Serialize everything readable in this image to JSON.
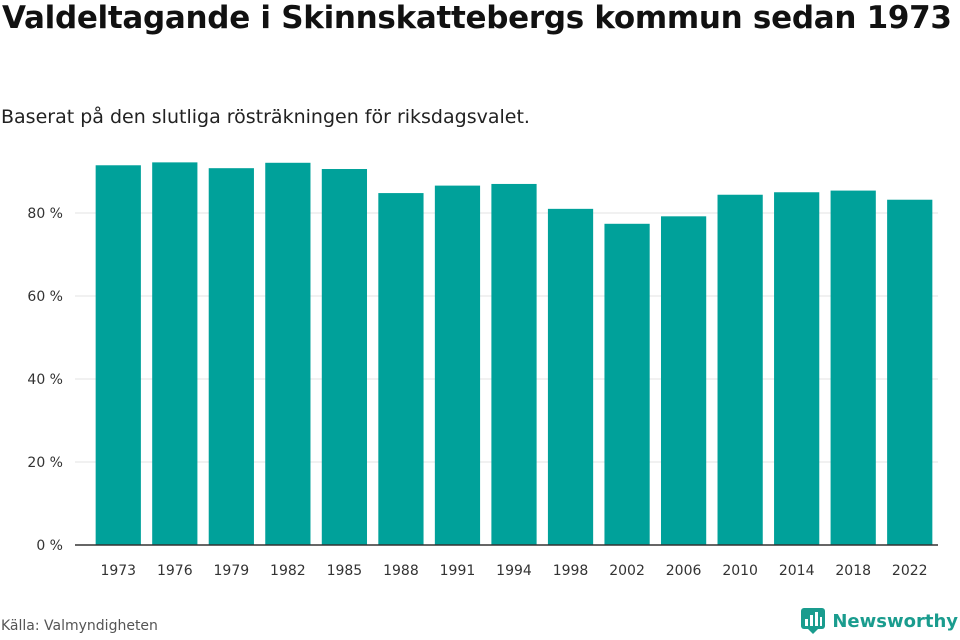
{
  "title": "Valdeltagande i Skinnskattebergs kommun sedan 1973",
  "subtitle": "Baserat på den slutliga rösträkningen för riksdagsvalet.",
  "source": "Källa: Valmyndigheten",
  "brand": "Newsworthy",
  "colors": {
    "bar": "#00a19a",
    "grid": "#e3e3e3",
    "axis": "#333333",
    "brand": "#1a9c8e"
  },
  "chart_data": {
    "type": "bar",
    "categories": [
      "1973",
      "1976",
      "1979",
      "1982",
      "1985",
      "1988",
      "1991",
      "1994",
      "1998",
      "2002",
      "2006",
      "2010",
      "2014",
      "2018",
      "2022"
    ],
    "values": [
      91.5,
      92.2,
      90.8,
      92.1,
      90.6,
      84.8,
      86.6,
      87.0,
      81.0,
      77.4,
      79.2,
      84.4,
      85.0,
      85.4,
      83.2
    ],
    "ylim": [
      0,
      100
    ],
    "yticks": [
      0,
      20,
      40,
      60,
      80
    ],
    "ytick_labels": [
      "0 %",
      "20 %",
      "40 %",
      "60 %",
      "80 %"
    ],
    "grid": true
  }
}
